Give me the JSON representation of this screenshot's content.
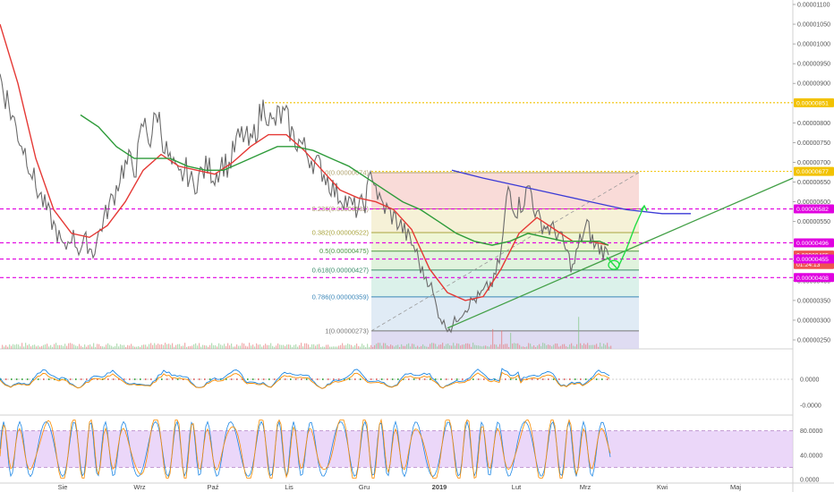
{
  "chart_data": {
    "type": "line",
    "main_panel": {
      "y_scale": {
        "min": 2.3e-06,
        "max": 1.1e-05
      },
      "y_ticks": [
        "0.00001100",
        "0.00001050",
        "0.00001000",
        "0.00000950",
        "0.00000900",
        "0.00000800",
        "0.00000750",
        "0.00000700",
        "0.00000650",
        "0.00000600",
        "0.00000550",
        "0.00000450",
        "0.00000400",
        "0.00000350",
        "0.00000300",
        "0.00000250"
      ],
      "x_labels": [
        "Sie",
        "Wrz",
        "Paź",
        "Lis",
        "Gru",
        "2019",
        "Lut",
        "Mrz",
        "Kwi",
        "Maj"
      ],
      "price_series": [
        [
          0,
          9.2e-06
        ],
        [
          8,
          8.6e-06
        ],
        [
          16,
          8e-06
        ],
        [
          24,
          7.5e-06
        ],
        [
          32,
          7.05e-06
        ],
        [
          40,
          6.4e-06
        ],
        [
          48,
          6e-06
        ],
        [
          56,
          5.6e-06
        ],
        [
          64,
          5.2e-06
        ],
        [
          72,
          4.75e-06
        ],
        [
          80,
          5.2e-06
        ],
        [
          88,
          4.8e-06
        ],
        [
          96,
          5e-06
        ],
        [
          104,
          4.7e-06
        ],
        [
          112,
          5.3e-06
        ],
        [
          120,
          5.8e-06
        ],
        [
          128,
          6.2e-06
        ],
        [
          136,
          6.8e-06
        ],
        [
          144,
          7e-06
        ],
        [
          152,
          6.9e-06
        ],
        [
          160,
          8e-06
        ],
        [
          168,
          7.6e-06
        ],
        [
          176,
          8.3e-06
        ],
        [
          184,
          7.4e-06
        ],
        [
          192,
          6.9e-06
        ],
        [
          200,
          6.6e-06
        ],
        [
          208,
          6.8e-06
        ],
        [
          216,
          6.4e-06
        ],
        [
          224,
          6.7e-06
        ],
        [
          232,
          6.9e-06
        ],
        [
          240,
          6.65e-06
        ],
        [
          248,
          7e-06
        ],
        [
          256,
          6.9e-06
        ],
        [
          264,
          7.5e-06
        ],
        [
          272,
          7.7e-06
        ],
        [
          280,
          7.4e-06
        ],
        [
          288,
          8e-06
        ],
        [
          296,
          8.5e-06
        ],
        [
          304,
          7.9e-06
        ],
        [
          312,
          8.2e-06
        ],
        [
          320,
          8.1e-06
        ],
        [
          328,
          7.6e-06
        ],
        [
          336,
          7.5e-06
        ],
        [
          344,
          7.2e-06
        ],
        [
          352,
          7e-06
        ],
        [
          360,
          6.8e-06
        ],
        [
          368,
          6.5e-06
        ],
        [
          376,
          6.2e-06
        ],
        [
          384,
          6.1e-06
        ],
        [
          392,
          5.9e-06
        ],
        [
          400,
          5.8e-06
        ],
        [
          408,
          6e-06
        ],
        [
          416,
          6.8e-06
        ],
        [
          424,
          6e-06
        ],
        [
          432,
          5.8e-06
        ],
        [
          440,
          5.6e-06
        ],
        [
          448,
          5.4e-06
        ],
        [
          456,
          5.1e-06
        ],
        [
          464,
          4.8e-06
        ],
        [
          472,
          4.2e-06
        ],
        [
          480,
          4e-06
        ],
        [
          488,
          3.3e-06
        ],
        [
          496,
          2.9e-06
        ],
        [
          504,
          2.8e-06
        ],
        [
          512,
          3.1e-06
        ],
        [
          520,
          3.3e-06
        ],
        [
          528,
          3.5e-06
        ],
        [
          536,
          3.6e-06
        ],
        [
          544,
          3.8e-06
        ],
        [
          552,
          4e-06
        ],
        [
          560,
          4.7e-06
        ],
        [
          568,
          6.4e-06
        ],
        [
          576,
          5.8e-06
        ],
        [
          584,
          6e-06
        ],
        [
          592,
          6.4e-06
        ],
        [
          600,
          5.6e-06
        ],
        [
          608,
          5.4e-06
        ],
        [
          616,
          5.3e-06
        ],
        [
          624,
          5.2e-06
        ],
        [
          632,
          4.8e-06
        ],
        [
          640,
          4.3e-06
        ],
        [
          648,
          5e-06
        ],
        [
          656,
          5.4e-06
        ],
        [
          664,
          4.9e-06
        ],
        [
          672,
          4.8e-06
        ],
        [
          680,
          4.65e-06
        ]
      ],
      "ma_red": [
        [
          0,
          1.05e-05
        ],
        [
          20,
          9e-06
        ],
        [
          40,
          7.1e-06
        ],
        [
          60,
          5.8e-06
        ],
        [
          80,
          5.2e-06
        ],
        [
          100,
          5.1e-06
        ],
        [
          120,
          5.4e-06
        ],
        [
          140,
          6e-06
        ],
        [
          160,
          6.8e-06
        ],
        [
          180,
          7.2e-06
        ],
        [
          200,
          6.9e-06
        ],
        [
          220,
          6.8e-06
        ],
        [
          240,
          6.7e-06
        ],
        [
          260,
          7e-06
        ],
        [
          280,
          7.4e-06
        ],
        [
          300,
          7.7e-06
        ],
        [
          320,
          7.7e-06
        ],
        [
          340,
          7.3e-06
        ],
        [
          360,
          6.8e-06
        ],
        [
          380,
          6.3e-06
        ],
        [
          400,
          6.1e-06
        ],
        [
          420,
          6e-06
        ],
        [
          440,
          5.8e-06
        ],
        [
          460,
          5.3e-06
        ],
        [
          480,
          4.3e-06
        ],
        [
          500,
          3.7e-06
        ],
        [
          520,
          3.5e-06
        ],
        [
          540,
          3.6e-06
        ],
        [
          560,
          4.3e-06
        ],
        [
          580,
          5.2e-06
        ],
        [
          600,
          5.6e-06
        ],
        [
          620,
          5.3e-06
        ],
        [
          640,
          5e-06
        ],
        [
          660,
          5e-06
        ],
        [
          680,
          4.9e-06
        ]
      ],
      "ma_green": [
        [
          90,
          8.2e-06
        ],
        [
          110,
          7.9e-06
        ],
        [
          130,
          7.4e-06
        ],
        [
          150,
          7.1e-06
        ],
        [
          170,
          7.1e-06
        ],
        [
          190,
          7.1e-06
        ],
        [
          210,
          6.9e-06
        ],
        [
          230,
          6.8e-06
        ],
        [
          250,
          6.8e-06
        ],
        [
          270,
          7e-06
        ],
        [
          290,
          7.2e-06
        ],
        [
          310,
          7.4e-06
        ],
        [
          330,
          7.4e-06
        ],
        [
          350,
          7.3e-06
        ],
        [
          370,
          7.1e-06
        ],
        [
          390,
          6.9e-06
        ],
        [
          410,
          6.6e-06
        ],
        [
          430,
          6.3e-06
        ],
        [
          450,
          6e-06
        ],
        [
          470,
          5.8e-06
        ],
        [
          490,
          5.5e-06
        ],
        [
          510,
          5.2e-06
        ],
        [
          530,
          5e-06
        ],
        [
          550,
          4.9e-06
        ],
        [
          570,
          5e-06
        ],
        [
          590,
          5.2e-06
        ],
        [
          610,
          5.1e-06
        ],
        [
          630,
          5e-06
        ],
        [
          650,
          5e-06
        ],
        [
          670,
          5e-06
        ],
        [
          680,
          4.9e-06
        ]
      ],
      "ma_blue": [
        [
          505,
          6.8e-06
        ],
        [
          540,
          6.6e-06
        ],
        [
          580,
          6.4e-06
        ],
        [
          620,
          6.2e-06
        ],
        [
          660,
          6e-06
        ],
        [
          700,
          5.8e-06
        ],
        [
          740,
          5.7e-06
        ],
        [
          772,
          5.7e-06
        ]
      ],
      "trendline": {
        "from": [
          500,
          2.8e-06
        ],
        "to": [
          886,
          6.6e-06
        ]
      },
      "fibonacci": {
        "x_range": [
          415,
          714
        ],
        "levels": [
          {
            "ratio": "0",
            "price": 6.74e-06,
            "label": "0(0.00000674)",
            "color": "#b0a26c"
          },
          {
            "ratio": "0.236",
            "price": 5.82e-06,
            "label": "0.236(0.00000582)",
            "color": "#a88a6a"
          },
          {
            "ratio": "0.382",
            "price": 5.22e-06,
            "label": "0.382(0.00000522)",
            "color": "#a9a43d"
          },
          {
            "ratio": "0.5",
            "price": 4.75e-06,
            "label": "0.5(0.00000475)",
            "color": "#4c9a45"
          },
          {
            "ratio": "0.618",
            "price": 4.27e-06,
            "label": "0.618(0.00000427)",
            "color": "#3a8d6a"
          },
          {
            "ratio": "0.786",
            "price": 3.59e-06,
            "label": "0.786(0.00000359)",
            "color": "#3a86b8"
          },
          {
            "ratio": "1",
            "price": 2.73e-06,
            "label": "1(0.00000273)",
            "color": "#777777"
          }
        ]
      },
      "hlines": [
        {
          "price": 8.51e-06,
          "color": "#f2c200",
          "style": "dotted"
        },
        {
          "price": 6.77e-06,
          "color": "#f2c200",
          "style": "dotted"
        },
        {
          "price": 5.82e-06,
          "color": "#e000e0",
          "style": "dashed"
        },
        {
          "price": 4.96e-06,
          "color": "#e000e0",
          "style": "dashed"
        },
        {
          "price": 4.55e-06,
          "color": "#e000e0",
          "style": "dashed"
        },
        {
          "price": 4.08e-06,
          "color": "#e000e0",
          "style": "dashed"
        }
      ],
      "badges": [
        {
          "text": "0.00000851",
          "price": 8.51e-06,
          "color": "#f2c200"
        },
        {
          "text": "0.00000677",
          "price": 6.77e-06,
          "color": "#f2c200"
        },
        {
          "text": "0.00000582",
          "price": 5.82e-06,
          "color": "#e000e0"
        },
        {
          "text": "0.00000496",
          "price": 4.96e-06,
          "color": "#e000e0"
        },
        {
          "text": "0.00000465",
          "price": 4.65e-06,
          "color": "#ef5350"
        },
        {
          "text": "01:24:13",
          "price": 4.41e-06,
          "color": "#ef5350"
        },
        {
          "text": "0.00000455",
          "price": 4.55e-06,
          "color": "#e000e0"
        },
        {
          "text": "0.00000408",
          "price": 4.08e-06,
          "color": "#e000e0"
        }
      ],
      "projection": [
        [
          678,
          4.6e-06
        ],
        [
          690,
          4.3e-06
        ],
        [
          700,
          4.8e-06
        ],
        [
          710,
          5.4e-06
        ],
        [
          720,
          5.9e-06
        ]
      ]
    },
    "osc_panel": {
      "y_ticks": [
        "0.0000",
        "-0.0000"
      ]
    },
    "rsi_panel": {
      "y_ticks": [
        "80.0000",
        "40.0000",
        "0.0000"
      ],
      "band": [
        20,
        80
      ]
    }
  },
  "colors": {
    "candles": "#6b6b6b",
    "ma_red": "#e53935",
    "ma_green": "#2e9b3a",
    "ma_blue": "#3b3bd6",
    "trend": "#43a047",
    "fib_top": "#f6c7c3",
    "rsi_band": "#e2c6f7"
  }
}
